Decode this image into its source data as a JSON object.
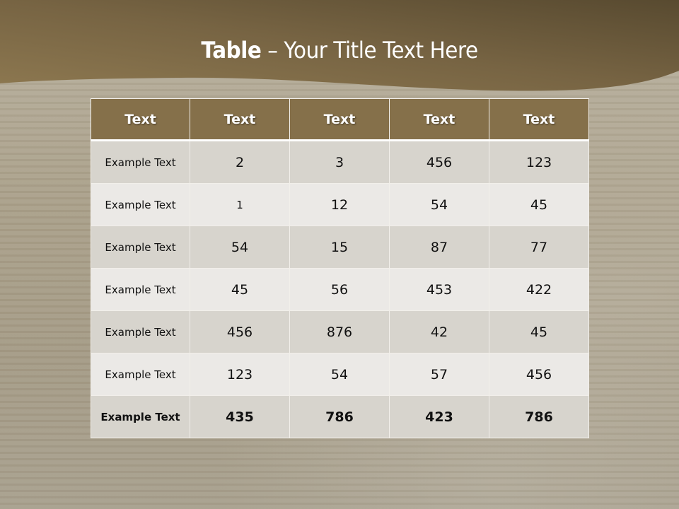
{
  "slide": {
    "title_bold": "Table",
    "title_rest": " – Your Title Text Here",
    "colors": {
      "header": "#85704a",
      "row_dark": "#d7d4cd",
      "row_light": "#ebe9e6",
      "band": "#7a6642"
    }
  },
  "table": {
    "headers": [
      "Text",
      "Text",
      "Text",
      "Text",
      "Text"
    ],
    "rows": [
      [
        "Example Text",
        "2",
        "3",
        "456",
        "123"
      ],
      [
        "Example Text",
        "1",
        "12",
        "54",
        "45"
      ],
      [
        "Example Text",
        "54",
        "15",
        "87",
        "77"
      ],
      [
        "Example Text",
        "45",
        "56",
        "453",
        "422"
      ],
      [
        "Example Text",
        "456",
        "876",
        "42",
        "45"
      ],
      [
        "Example Text",
        "123",
        "54",
        "57",
        "456"
      ],
      [
        "Example Text",
        "435",
        "786",
        "423",
        "786"
      ]
    ]
  }
}
